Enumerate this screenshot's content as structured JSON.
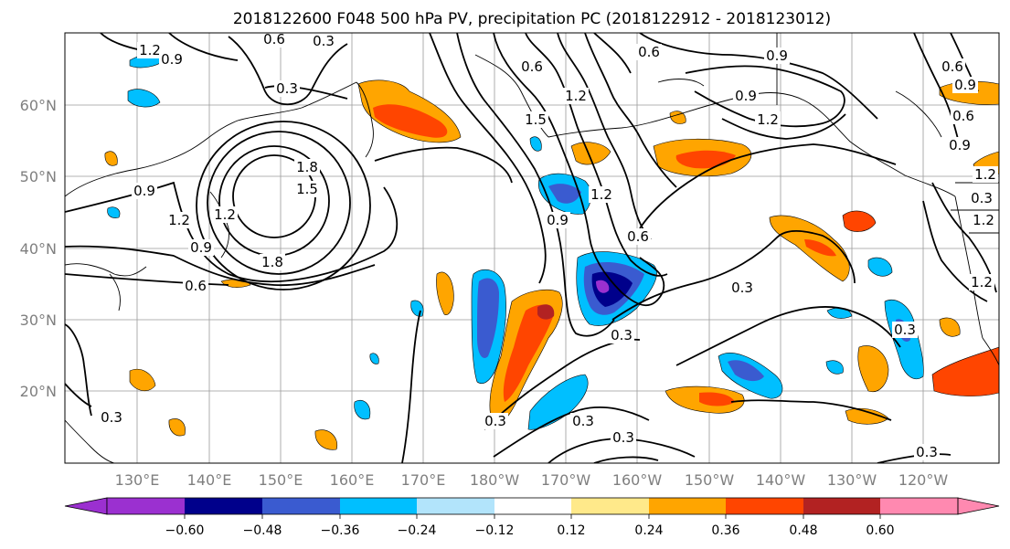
{
  "title": "2018122600 F048 500 hPa PV, precipitation PC (2018122912 - 2018123012)",
  "map": {
    "lon_ticks": [
      "130°E",
      "140°E",
      "150°E",
      "160°E",
      "170°E",
      "180°W",
      "170°W",
      "160°W",
      "150°W",
      "140°W",
      "130°W",
      "120°W"
    ],
    "lat_ticks": [
      "60°N",
      "50°N",
      "40°N",
      "30°N",
      "20°N"
    ],
    "contour_labels": [
      "1.2",
      "0.9",
      "0.6",
      "0.3",
      "0.3",
      "0.9",
      "1.2",
      "1.8",
      "1.5",
      "1.2",
      "0.9",
      "0.6",
      "1.8",
      "0.6",
      "0.9",
      "1.2",
      "0.6",
      "0.9",
      "1.2",
      "1.5",
      "1.2",
      "0.9",
      "0.6",
      "0.3",
      "0.3",
      "0.3",
      "0.3",
      "0.3",
      "0.9",
      "0.6",
      "0.6",
      "1.2",
      "0.9",
      "0.3",
      "0.3",
      "0.3",
      "0.3",
      "1.2",
      "1.2"
    ]
  },
  "colorbar": {
    "tick_labels": [
      "−0.60",
      "−0.48",
      "−0.36",
      "−0.24",
      "−0.12",
      "0.12",
      "0.24",
      "0.36",
      "0.48",
      "0.60"
    ],
    "colors": [
      "#9b30d0",
      "#00008b",
      "#3a5bd0",
      "#00bfff",
      "#b2e4fb",
      "#ffffff",
      "#ffe98a",
      "#ffa500",
      "#ff4500",
      "#b22222",
      "#ff89b0"
    ]
  }
}
